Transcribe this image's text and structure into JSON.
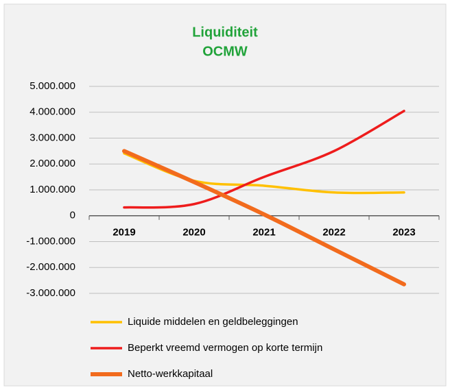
{
  "chart_data": {
    "type": "line",
    "title": [
      "Liquiditeit",
      "OCMW"
    ],
    "categories": [
      "2019",
      "2020",
      "2021",
      "2022",
      "2023"
    ],
    "series": [
      {
        "name": "Liquide middelen en geldbeleggingen",
        "color": "#ffc000",
        "values": [
          2410000,
          1350000,
          1160000,
          900000,
          900000
        ]
      },
      {
        "name": "Beperkt vreemd vermogen op korte termijn",
        "color": "#ee1c1c",
        "values": [
          320000,
          450000,
          1500000,
          2500000,
          4050000
        ]
      },
      {
        "name": "Netto-werkkapitaal",
        "color": "#f26b1d",
        "values": [
          2500000,
          1300000,
          50000,
          -1300000,
          -2650000
        ]
      }
    ],
    "ylim": [
      -3000000,
      5000000
    ],
    "yticks": [
      {
        "value": 5000000,
        "label": "5.000.000"
      },
      {
        "value": 4000000,
        "label": "4.000.000"
      },
      {
        "value": 3000000,
        "label": "3.000.000"
      },
      {
        "value": 2000000,
        "label": "2.000.000"
      },
      {
        "value": 1000000,
        "label": "1.000.000"
      },
      0,
      {
        "value": -1000000,
        "label": "-1.000.000"
      },
      {
        "value": -2000000,
        "label": "-2.000.000"
      },
      {
        "value": -3000000,
        "label": "-3.000.000"
      }
    ],
    "grid": true
  }
}
